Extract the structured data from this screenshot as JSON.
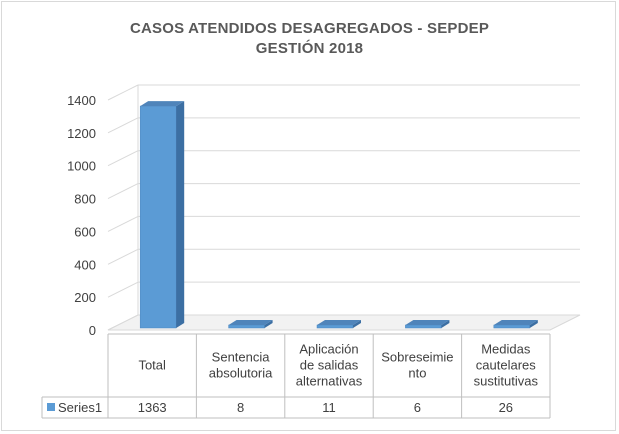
{
  "chart_data": {
    "type": "bar",
    "title": "CASOS ATENDIDOS DESAGREGADOS - SEPDEP",
    "subtitle": "GESTIÓN 2018",
    "categories": [
      [
        "Total"
      ],
      [
        "Sentencia",
        "absolutoria"
      ],
      [
        "Aplicación",
        "de salidas",
        "alternativas"
      ],
      [
        "Sobreseimie",
        "nto"
      ],
      [
        "Medidas",
        "cautelares",
        "sustitutivas"
      ]
    ],
    "series": [
      {
        "name": "Series1",
        "values": [
          1363,
          8,
          11,
          6,
          26
        ],
        "color": "#5b9bd5"
      }
    ],
    "value_labels": [
      "1363",
      "8",
      "11",
      "6",
      "26"
    ],
    "yticks": [
      "0",
      "200",
      "400",
      "600",
      "800",
      "1000",
      "1200",
      "1400"
    ],
    "ylim": [
      0,
      1400
    ],
    "grid": true,
    "style": "3d-column",
    "legend": "data-table"
  }
}
